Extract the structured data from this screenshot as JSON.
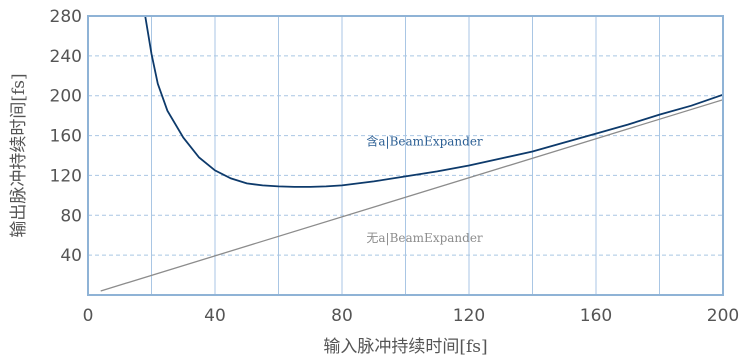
{
  "chart_data": {
    "type": "line",
    "xlabel": "输入脉冲持续时间[fs]",
    "ylabel": "输出脉冲持续时间[fs]",
    "xlim": [
      0,
      200
    ],
    "ylim": [
      0,
      280
    ],
    "x_ticks": [
      0,
      40,
      80,
      120,
      160,
      200
    ],
    "y_ticks": [
      40,
      80,
      120,
      160,
      200,
      240,
      280
    ],
    "x_grid": [
      20,
      40,
      60,
      80,
      100,
      120,
      140,
      160,
      180
    ],
    "grid": true,
    "series": [
      {
        "name": "含a|BeamExpander",
        "color": "#0d3a6b",
        "x": [
          18,
          20,
          22,
          25,
          30,
          35,
          40,
          45,
          50,
          55,
          60,
          65,
          70,
          75,
          80,
          90,
          100,
          110,
          120,
          130,
          140,
          150,
          160,
          170,
          180,
          190,
          200
        ],
        "y": [
          280,
          242,
          212,
          185,
          158,
          138,
          125,
          117,
          112,
          110,
          109,
          108.5,
          108.5,
          109,
          110,
          114,
          119,
          124,
          130,
          137,
          144,
          153,
          162,
          171,
          181,
          190,
          201
        ]
      },
      {
        "name": "无a|BeamExpander",
        "color": "#8c8c8c",
        "x": [
          4,
          200
        ],
        "y": [
          4,
          196
        ]
      }
    ],
    "annotations": [
      {
        "text": "含a|BeamExpander",
        "x": 106,
        "y": 150,
        "color": "#2c5f94"
      },
      {
        "text": "无a|BeamExpander",
        "x": 106,
        "y": 53,
        "color": "#8c8c8c"
      }
    ],
    "colors": {
      "frame": "#8fb3d6",
      "grid": "#a9c6e4"
    }
  }
}
